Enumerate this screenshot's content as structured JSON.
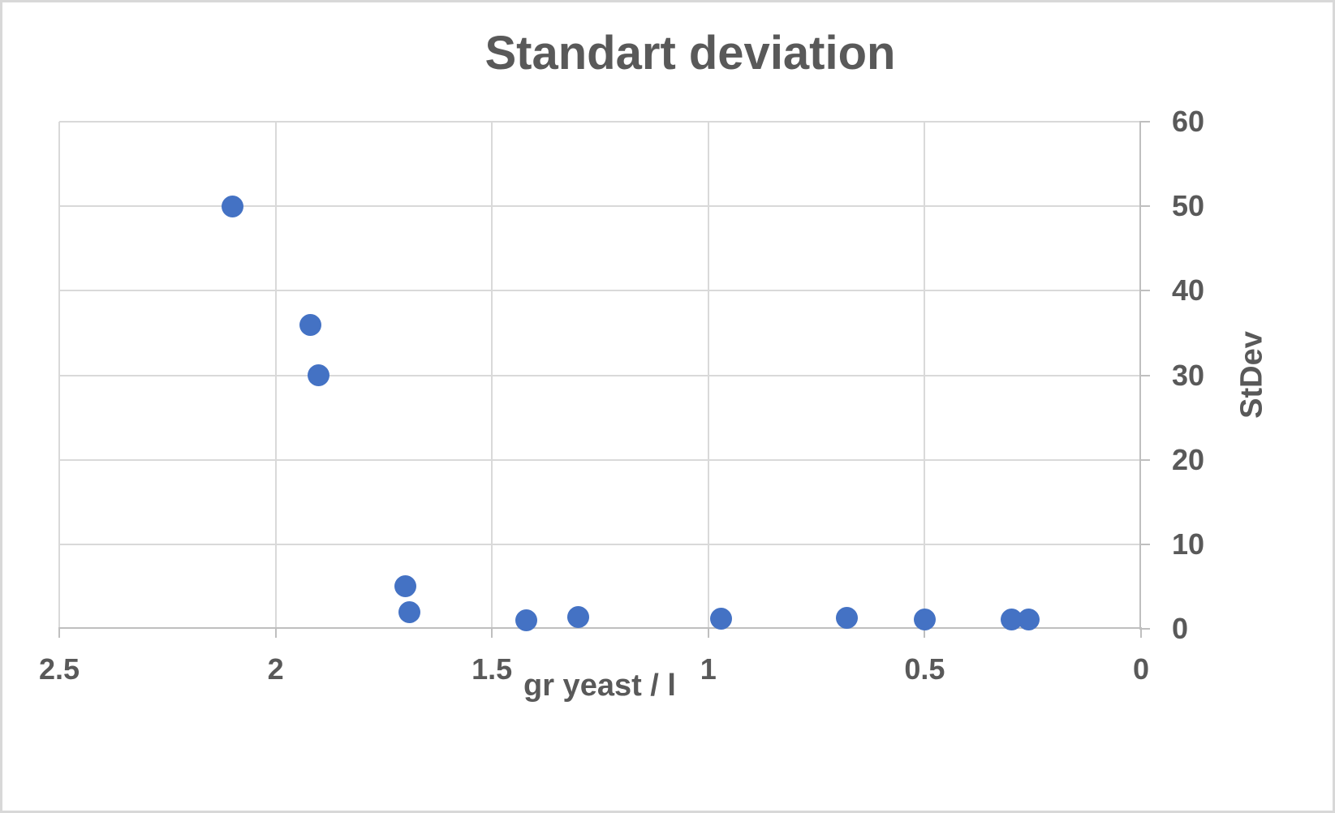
{
  "theme": {
    "accent": "#4472C4",
    "gridline": "#D9D9D9",
    "axis": "#BFBFBF",
    "text": "#595959",
    "background": "#FFFFFF",
    "frame": "#D8D8D8"
  },
  "chart_data": {
    "type": "scatter",
    "title": "Standart deviation",
    "xlabel": "gr yeast / l",
    "ylabel": "StDev",
    "xlim": [
      2.5,
      0
    ],
    "ylim": [
      0,
      60
    ],
    "x_axis_reversed": true,
    "y_axis_position": "right",
    "grid": true,
    "legend": "none",
    "x_ticks": [
      "2.5",
      "2",
      "1.5",
      "1",
      "0.5",
      "0"
    ],
    "y_ticks": [
      "60",
      "50",
      "40",
      "30",
      "20",
      "10",
      "0"
    ],
    "points": [
      {
        "x": 2.1,
        "y": 50
      },
      {
        "x": 1.92,
        "y": 36
      },
      {
        "x": 1.9,
        "y": 30
      },
      {
        "x": 1.7,
        "y": 5
      },
      {
        "x": 1.69,
        "y": 2
      },
      {
        "x": 1.42,
        "y": 1
      },
      {
        "x": 1.3,
        "y": 1.4
      },
      {
        "x": 0.97,
        "y": 1.2
      },
      {
        "x": 0.68,
        "y": 1.3
      },
      {
        "x": 0.5,
        "y": 1.1
      },
      {
        "x": 0.3,
        "y": 1.1
      },
      {
        "x": 0.26,
        "y": 1.1
      }
    ]
  }
}
